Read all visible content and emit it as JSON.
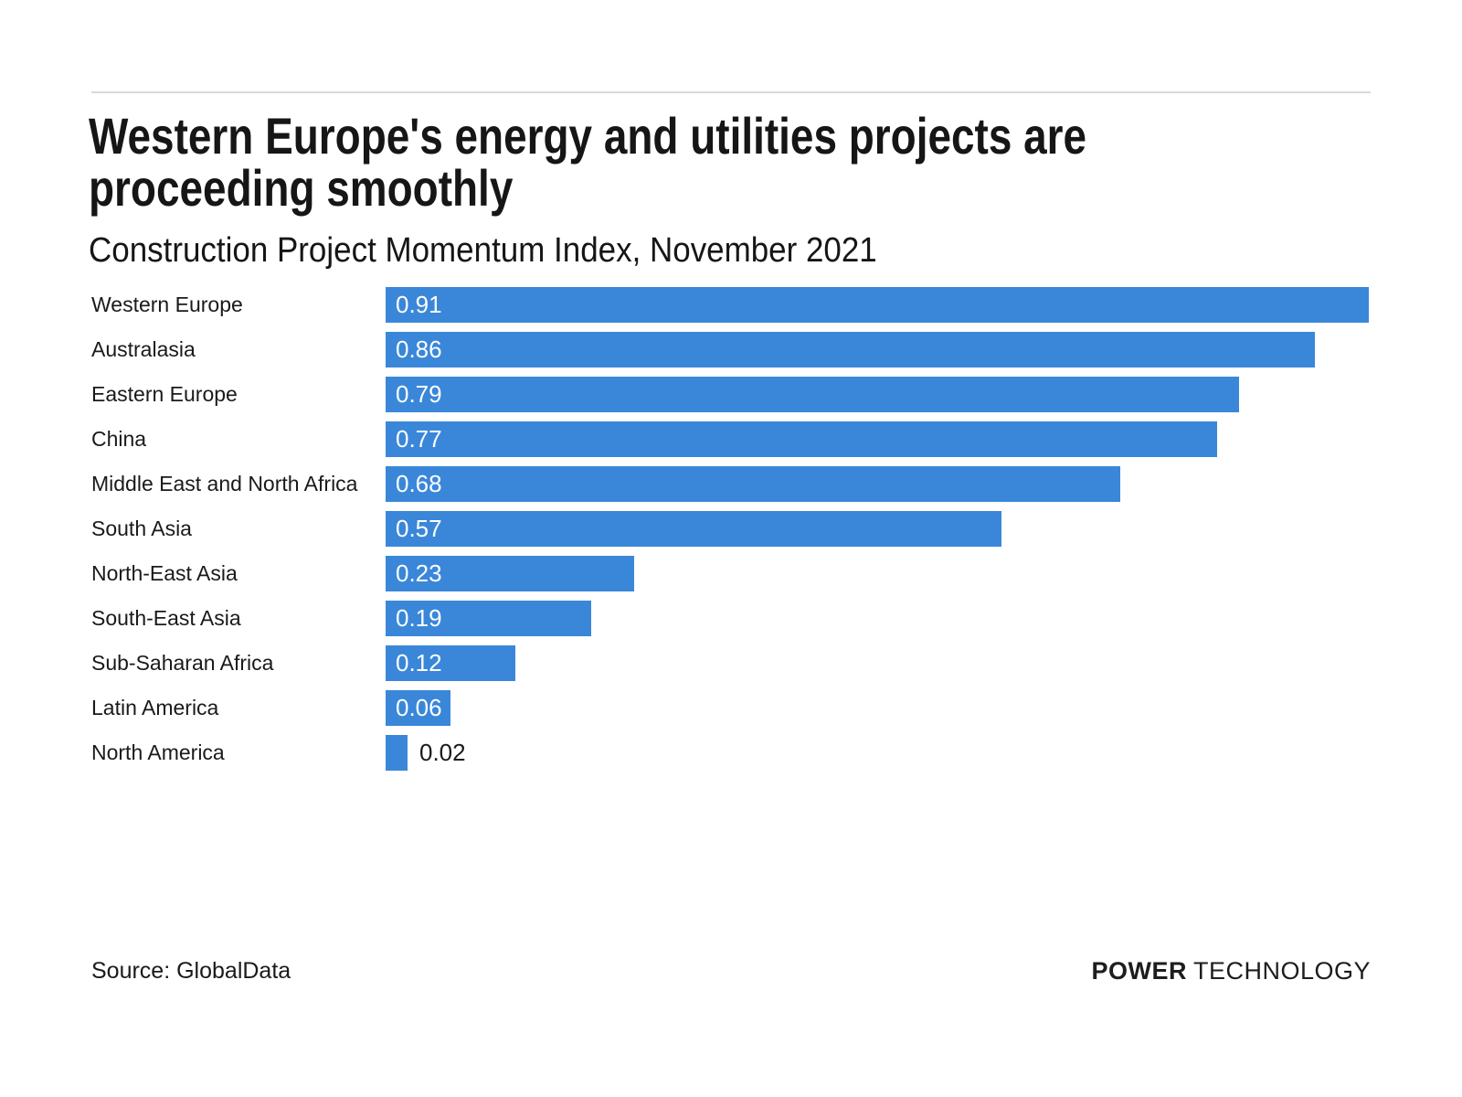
{
  "page": {
    "title_lines": [
      "Western Europe's energy and utilities projects are",
      "proceeding smoothly"
    ],
    "subtitle": "Construction Project Momentum Index, November 2021",
    "source": "Source: GlobalData",
    "logo": {
      "bold": "POWER",
      "regular": "TECHNOLOGY"
    }
  },
  "colors": {
    "bar": "#3a87d9",
    "title": "#161616",
    "text": "#1a1a1a",
    "value_inside": "#ffffff",
    "rule": "#d8d8d8",
    "background": "#ffffff"
  },
  "chart_data": {
    "type": "bar",
    "orientation": "horizontal",
    "title": "Western Europe's energy and utilities projects are proceeding smoothly",
    "subtitle": "Construction Project Momentum Index, November 2021",
    "categories": [
      "Western Europe",
      "Australasia",
      "Eastern Europe",
      "China",
      "Middle East and North Africa",
      "South Asia",
      "North-East Asia",
      "South-East Asia",
      "Sub-Saharan Africa",
      "Latin America",
      "North America"
    ],
    "values": [
      0.91,
      0.86,
      0.79,
      0.77,
      0.68,
      0.57,
      0.23,
      0.19,
      0.12,
      0.06,
      0.02
    ],
    "value_labels": [
      "0.91",
      "0.86",
      "0.79",
      "0.77",
      "0.68",
      "0.57",
      "0.23",
      "0.19",
      "0.12",
      "0.06",
      "0.02"
    ],
    "xlim": [
      0,
      0.91
    ],
    "grid": false,
    "legend": false,
    "axis_ticks_visible": false,
    "bar_label_position": "inside-left, outside for smallest bar"
  }
}
